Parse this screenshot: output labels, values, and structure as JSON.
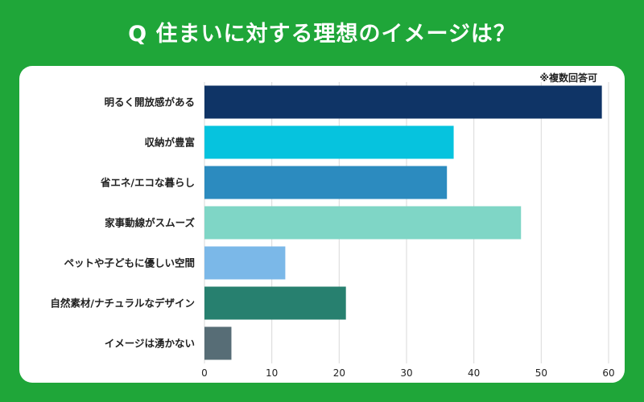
{
  "title": "Q 住まいに対する理想のイメージは？",
  "note": "※複数回答可",
  "chart_data": {
    "type": "bar",
    "orientation": "horizontal",
    "title": "Q 住まいに対する理想のイメージは？",
    "categories": [
      "明るく開放感がある",
      "収納が豊富",
      "省エネ/エコな暮らし",
      "家事動線がスムーズ",
      "ペットや子どもに優しい空間",
      "自然素材/ナチュラルなデザイン",
      "イメージは湧かない"
    ],
    "values": [
      59,
      37,
      36,
      47,
      12,
      21,
      4
    ],
    "colors": [
      "#0f3466",
      "#06c3de",
      "#2c8bbf",
      "#7fd6c6",
      "#7bb8e8",
      "#27806f",
      "#576d76"
    ],
    "xlim": [
      0,
      60
    ],
    "xticks": [
      0,
      10,
      20,
      30,
      40,
      50,
      60
    ],
    "grid": true,
    "xlabel": "",
    "ylabel": ""
  }
}
